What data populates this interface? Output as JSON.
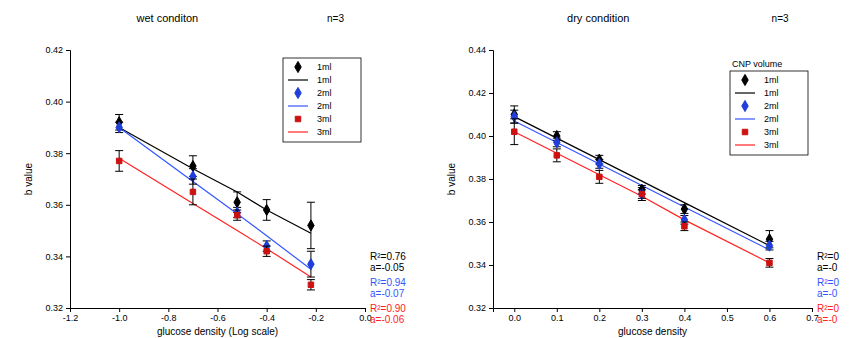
{
  "chart_data": [
    {
      "type": "scatter",
      "title": "wet conditon",
      "subtitle": "n=3",
      "x_label": "glucose density (Log scale)",
      "y_label": "b value",
      "xlim": [
        -1.2,
        0.0
      ],
      "xticks": [
        -1.2,
        {
          "value": -1.0,
          "label": "-1.0"
        },
        -0.8,
        -0.6,
        -0.4,
        -0.2,
        {
          "value": 0.0,
          "label": "0.0"
        }
      ],
      "ylim": [
        0.32,
        0.42
      ],
      "yticks": [
        0.32,
        0.34,
        0.36,
        0.38,
        {
          "value": 0.4,
          "label": "0.40"
        },
        0.42
      ],
      "legend": "upper right",
      "grid": false,
      "x": [
        -1.0,
        -0.7,
        -0.52,
        -0.4,
        -0.22
      ],
      "series": [
        {
          "name": "1ml",
          "type": "scatter",
          "marker": "diamond",
          "color": "#000000",
          "values": [
            0.392,
            0.375,
            0.361,
            0.358,
            0.352
          ],
          "errors": [
            0.003,
            0.004,
            0.004,
            0.004,
            0.009
          ]
        },
        {
          "name": "1ml",
          "type": "line",
          "line_style": "solid",
          "color": "#000000",
          "values": [
            0.39,
            0.374,
            0.365,
            0.358,
            0.349
          ]
        },
        {
          "name": "2ml",
          "type": "scatter",
          "marker": "diamond",
          "color": "#1f3fd8",
          "values": [
            0.39,
            0.371,
            0.357,
            0.344,
            0.337
          ],
          "errors": [
            0.002,
            0.003,
            0.002,
            0.002,
            0.005
          ]
        },
        {
          "name": "2ml",
          "type": "line",
          "line_style": "solid",
          "color": "#3355ff",
          "values": [
            0.39,
            0.369,
            0.3565,
            0.348,
            0.335
          ]
        },
        {
          "name": "3ml",
          "type": "scatter",
          "marker": "square",
          "color": "#cc1111",
          "values": [
            0.377,
            0.365,
            0.356,
            0.342,
            0.329
          ],
          "errors": [
            0.004,
            0.005,
            0.002,
            0.002,
            0.002
          ]
        },
        {
          "name": "3ml",
          "type": "line",
          "line_style": "solid",
          "color": "#ff2222",
          "values": [
            0.378,
            0.3605,
            0.35,
            0.343,
            0.332
          ]
        }
      ],
      "annotations": [
        {
          "text": "R²=0.76",
          "color": "#000000"
        },
        {
          "text": "a=-0.05",
          "color": "#000000"
        },
        {
          "text": "R²=0.94",
          "color": "#3355ff"
        },
        {
          "text": "a=-0.07",
          "color": "#3355ff"
        },
        {
          "text": "R²=0.90",
          "color": "#ff2222"
        },
        {
          "text": "a=-0.06",
          "color": "#ff2222"
        }
      ]
    },
    {
      "type": "scatter",
      "title": "dry condition",
      "subtitle": "n=3",
      "x_label": "glucose density",
      "y_label": "b value",
      "xlim": [
        -0.05,
        0.7
      ],
      "xticks": [
        {
          "value": 0.0,
          "label": "0.0"
        },
        0.1,
        0.2,
        0.3,
        0.4,
        0.5,
        0.6,
        0.7
      ],
      "ylim": [
        0.32,
        0.44
      ],
      "yticks": [
        0.32,
        0.34,
        0.36,
        0.38,
        {
          "value": 0.4,
          "label": "0.40"
        },
        0.42,
        0.44
      ],
      "legend": "upper right",
      "legend_title": "CNP volume",
      "grid": false,
      "x": [
        0.0,
        0.1,
        0.2,
        0.3,
        0.4,
        0.6
      ],
      "series": [
        {
          "name": "1ml",
          "type": "scatter",
          "marker": "diamond",
          "color": "#000000",
          "values": [
            0.41,
            0.4,
            0.389,
            0.375,
            0.366,
            0.352
          ],
          "errors": [
            0.004,
            0.002,
            0.002,
            0.002,
            0.002,
            0.004
          ]
        },
        {
          "name": "1ml",
          "type": "line",
          "line_style": "solid",
          "color": "#000000",
          "values": [
            0.409,
            0.399,
            0.389,
            0.379,
            0.369,
            0.349
          ]
        },
        {
          "name": "2ml",
          "type": "scatter",
          "marker": "diamond",
          "color": "#1f3fd8",
          "values": [
            0.409,
            0.397,
            0.387,
            0.373,
            0.361,
            0.349
          ],
          "errors": [
            0.003,
            0.002,
            0.002,
            0.002,
            0.002,
            0.002
          ]
        },
        {
          "name": "2ml",
          "type": "line",
          "line_style": "solid",
          "color": "#3355ff",
          "values": [
            0.407,
            0.397,
            0.387,
            0.377,
            0.367,
            0.347
          ]
        },
        {
          "name": "3ml",
          "type": "scatter",
          "marker": "square",
          "color": "#cc1111",
          "values": [
            0.402,
            0.391,
            0.381,
            0.373,
            0.358,
            0.341
          ],
          "errors": [
            0.006,
            0.003,
            0.003,
            0.003,
            0.002,
            0.002
          ]
        },
        {
          "name": "3ml",
          "type": "line",
          "line_style": "solid",
          "color": "#ff2222",
          "values": [
            0.402,
            0.392,
            0.382,
            0.372,
            0.361,
            0.341
          ]
        }
      ],
      "annotations": [
        {
          "text": "R²=0",
          "color": "#000000"
        },
        {
          "text": "a=-0",
          "color": "#000000"
        },
        {
          "text": "R²=0",
          "color": "#3355ff"
        },
        {
          "text": "a=-0",
          "color": "#3355ff"
        },
        {
          "text": "R²=0",
          "color": "#ff2222"
        },
        {
          "text": "a=-0",
          "color": "#ff2222"
        }
      ]
    }
  ]
}
